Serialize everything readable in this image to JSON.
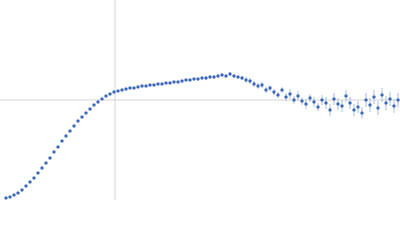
{
  "chart_data": {
    "type": "scatter",
    "xlim": [
      0,
      400
    ],
    "ylim": [
      0,
      200
    ],
    "vlines": [
      115
    ],
    "hlines": [
      100
    ],
    "series": [
      {
        "color": "#3a67b8",
        "error_color": "#a9bde3",
        "x": [
          6,
          10,
          14,
          18,
          22,
          26,
          30,
          34,
          38,
          42,
          46,
          50,
          54,
          58,
          62,
          66,
          70,
          74,
          78,
          82,
          86,
          90,
          94,
          98,
          102,
          106,
          110,
          114,
          118,
          122,
          126,
          130,
          134,
          138,
          142,
          146,
          150,
          154,
          158,
          162,
          166,
          170,
          174,
          178,
          182,
          186,
          190,
          194,
          198,
          202,
          206,
          210,
          214,
          218,
          222,
          226,
          230,
          234,
          238,
          242,
          246,
          250,
          254,
          258,
          262,
          266,
          270,
          274,
          278,
          282,
          286,
          290,
          294,
          298,
          302,
          306,
          310,
          314,
          318,
          322,
          326,
          330,
          334,
          338,
          342,
          346,
          350,
          354,
          358,
          362,
          366,
          370,
          374,
          378,
          382,
          386,
          390,
          394,
          398
        ],
        "values": [
          2,
          3,
          5,
          7,
          10,
          14,
          18,
          22,
          27,
          32,
          37,
          42,
          48,
          53,
          59,
          64,
          69,
          74,
          79,
          83,
          87,
          91,
          95,
          98,
          101,
          104,
          106,
          108,
          109,
          110,
          111,
          112,
          112,
          113,
          114,
          114,
          115,
          115,
          116,
          116,
          117,
          117,
          118,
          118,
          119,
          120,
          120,
          121,
          121,
          122,
          122,
          123,
          123,
          124,
          125,
          124,
          126,
          124,
          123,
          122,
          120,
          119,
          116,
          114,
          115,
          110,
          112,
          108,
          105,
          110,
          103,
          106,
          100,
          104,
          99,
          96,
          102,
          98,
          93,
          100,
          97,
          90,
          101,
          96,
          94,
          104,
          97,
          90,
          93,
          87,
          100,
          95,
          103,
          92,
          105,
          97,
          101,
          94,
          100
        ],
        "errors": [
          1,
          1,
          1,
          1,
          1,
          1,
          1,
          1,
          1,
          1,
          1,
          1,
          1,
          1,
          1,
          1,
          1,
          1,
          1,
          1,
          1,
          1,
          1,
          1,
          1,
          1,
          1,
          1,
          1,
          1,
          1,
          1,
          1,
          1,
          1,
          1,
          1,
          1,
          1,
          1,
          1,
          1,
          1,
          1,
          1,
          1,
          1,
          1,
          1,
          1,
          2,
          2,
          2,
          2,
          2,
          2,
          2,
          2,
          2,
          2,
          3,
          3,
          3,
          3,
          3,
          3,
          3,
          3,
          3,
          3,
          4,
          5,
          4,
          5,
          4,
          5,
          4,
          5,
          4,
          5,
          6,
          6,
          6,
          6,
          6,
          6,
          6,
          6,
          6,
          6,
          7,
          7,
          7,
          7,
          7,
          7,
          7,
          7,
          7
        ]
      }
    ]
  }
}
